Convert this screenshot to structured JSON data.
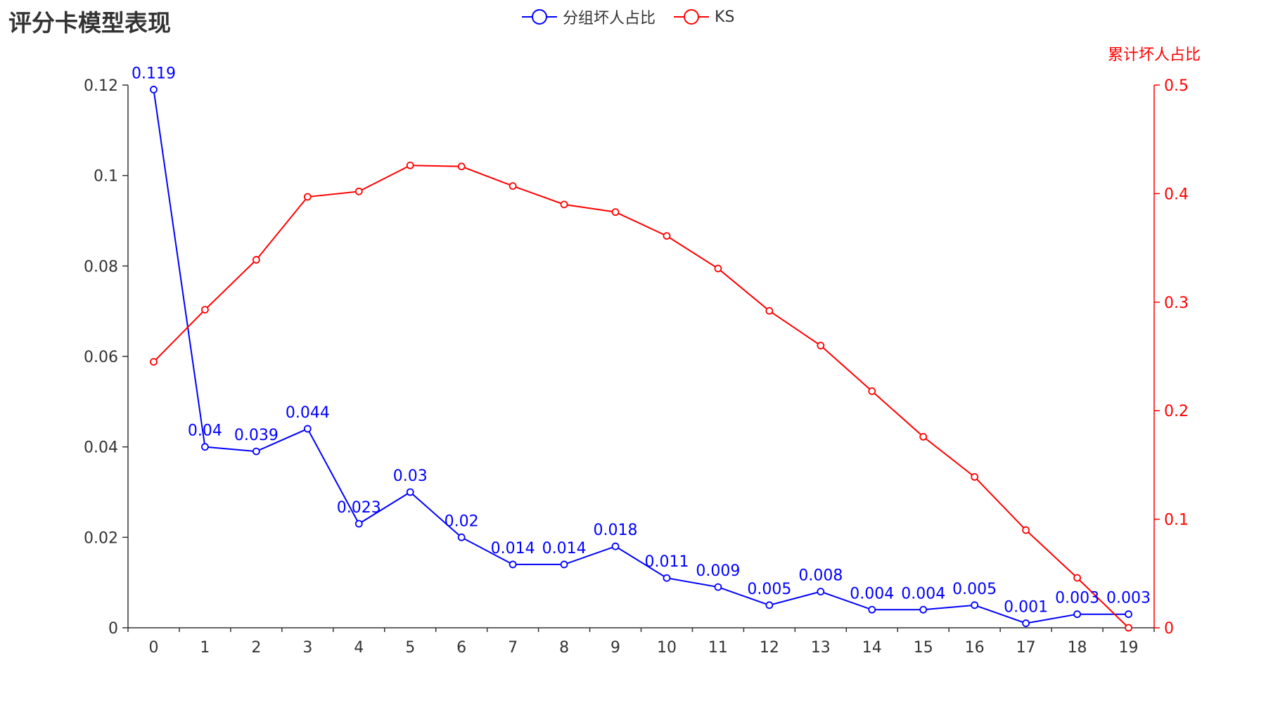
{
  "title": "评分卡模型表现",
  "legend": {
    "series1": "分组坏人占比",
    "series2": "KS"
  },
  "chart_data": {
    "type": "line",
    "title": "评分卡模型表现",
    "x": [
      0,
      1,
      2,
      3,
      4,
      5,
      6,
      7,
      8,
      9,
      10,
      11,
      12,
      13,
      14,
      15,
      16,
      17,
      18,
      19
    ],
    "y_left": {
      "ylim": [
        0,
        0.12
      ],
      "ticks": [
        "0",
        "0.02",
        "0.04",
        "0.06",
        "0.08",
        "0.1",
        "0.12"
      ],
      "color": "#333333"
    },
    "y_right": {
      "label": "累计坏人占比",
      "ylim": [
        0,
        0.5
      ],
      "ticks": [
        "0",
        "0.1",
        "0.2",
        "0.3",
        "0.4",
        "0.5"
      ],
      "color": "#ff0000"
    },
    "series": [
      {
        "name": "分组坏人占比",
        "axis": "left",
        "color": "#0000ff",
        "values": [
          0.119,
          0.04,
          0.039,
          0.044,
          0.023,
          0.03,
          0.02,
          0.014,
          0.014,
          0.018,
          0.011,
          0.009,
          0.005,
          0.008,
          0.004,
          0.004,
          0.005,
          0.001,
          0.003,
          0.003
        ],
        "labels": [
          "0.119",
          "0.04",
          "0.039",
          "0.044",
          "0.023",
          "0.03",
          "0.02",
          "0.014",
          "0.014",
          "0.018",
          "0.011",
          "0.009",
          "0.005",
          "0.008",
          "0.004",
          "0.004",
          "0.005",
          "0.001",
          "0.003",
          "0.003"
        ]
      },
      {
        "name": "KS",
        "axis": "right",
        "color": "#ff0000",
        "values": [
          0.245,
          0.293,
          0.339,
          0.397,
          0.402,
          0.426,
          0.425,
          0.407,
          0.39,
          0.383,
          0.361,
          0.331,
          0.292,
          0.26,
          0.218,
          0.176,
          0.139,
          0.09,
          0.046,
          0.0
        ]
      }
    ],
    "grid": false,
    "legend_position": "top-center"
  }
}
